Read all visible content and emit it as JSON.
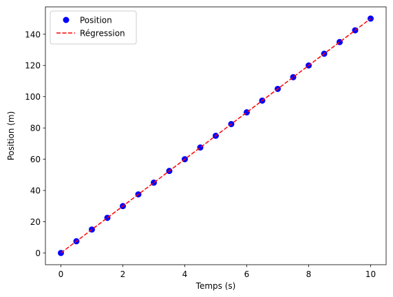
{
  "chart_data": {
    "type": "scatter",
    "title": "",
    "xlabel": "Temps (s)",
    "ylabel": "Position (m)",
    "xlim": [
      -0.5,
      10.5
    ],
    "ylim": [
      -7.5,
      157.5
    ],
    "xticks": [
      0,
      2,
      4,
      6,
      8,
      10
    ],
    "yticks": [
      0,
      20,
      40,
      60,
      80,
      100,
      120,
      140
    ],
    "grid": false,
    "legend_position": "upper-left",
    "series": [
      {
        "name": "Position",
        "style": "markers",
        "color": "#0000ff",
        "x": [
          0,
          0.5,
          1,
          1.5,
          2,
          2.5,
          3,
          3.5,
          4,
          4.5,
          5,
          5.5,
          6,
          6.5,
          7,
          7.5,
          8,
          8.5,
          9,
          9.5,
          10
        ],
        "y": [
          0,
          7.5,
          15,
          22.5,
          30,
          37.5,
          45,
          52.5,
          60,
          67.5,
          75,
          82.5,
          90,
          97.5,
          105,
          112.5,
          120,
          127.5,
          135,
          142.5,
          150
        ]
      },
      {
        "name": "Régression",
        "style": "dashed-line",
        "color": "#ff0000",
        "x": [
          0,
          10
        ],
        "y": [
          0,
          150
        ]
      }
    ]
  }
}
